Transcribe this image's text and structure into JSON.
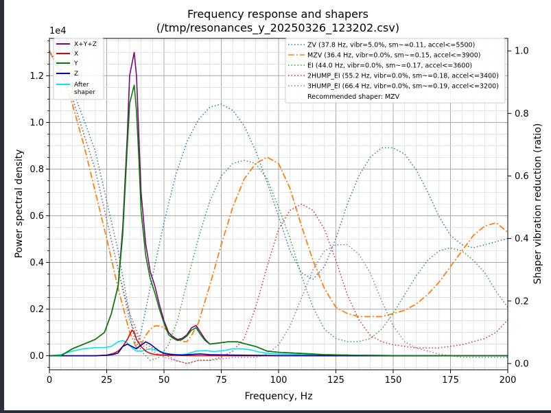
{
  "chart_data": {
    "type": "line",
    "title": "Frequency response and shapers",
    "subtitle": "(/tmp/resonances_y_20250326_123202.csv)",
    "xlabel": "Frequency, Hz",
    "ylabel": "Power spectral density",
    "y2label": "Shaper vibration reduction (ratio)",
    "y_offset_label": "1e4",
    "xlim": [
      0,
      200
    ],
    "ylim": [
      -0.06,
      1.36
    ],
    "y2lim": [
      -0.02,
      1.04
    ],
    "x_ticks": [
      0,
      25,
      50,
      75,
      100,
      125,
      150,
      175,
      200
    ],
    "y_ticks": [
      0.0,
      0.2,
      0.4,
      0.6,
      0.8,
      1.0,
      1.2
    ],
    "y_tick_labels": [
      "0.0",
      "0.2",
      "0.4",
      "0.6",
      "0.8",
      "1.0",
      "1.2"
    ],
    "y2_ticks": [
      0.0,
      0.2,
      0.4,
      0.6,
      0.8,
      1.0
    ],
    "y2_tick_labels": [
      "0.0",
      "0.2",
      "0.4",
      "0.6",
      "0.8",
      "1.0"
    ],
    "grid": true,
    "legend_left_position": "top-left",
    "legend_right_position": "top-right",
    "psd_series": [
      {
        "name": "X+Y+Z",
        "color": "#800080",
        "x": [
          0,
          5,
          10,
          15,
          20,
          24,
          27,
          30,
          32,
          34,
          35,
          36,
          37,
          38,
          39,
          40,
          42,
          44,
          46,
          48,
          50,
          52,
          54,
          56,
          58,
          60,
          62,
          64,
          66,
          68,
          70,
          74,
          78,
          82,
          86,
          90,
          95,
          100,
          110,
          120,
          130,
          140,
          150,
          160,
          170,
          180,
          190,
          200
        ],
        "y": [
          0,
          0,
          0.03,
          0.05,
          0.07,
          0.1,
          0.18,
          0.3,
          0.55,
          0.95,
          1.2,
          1.25,
          1.3,
          1.2,
          0.95,
          0.7,
          0.48,
          0.36,
          0.3,
          0.22,
          0.15,
          0.1,
          0.08,
          0.07,
          0.075,
          0.09,
          0.12,
          0.13,
          0.1,
          0.07,
          0.05,
          0.055,
          0.06,
          0.06,
          0.05,
          0.04,
          0.02,
          0.015,
          0.01,
          0.005,
          0.003,
          0.002,
          0.001,
          0.001,
          0.0,
          0.0,
          0.0,
          0.0
        ]
      },
      {
        "name": "X",
        "color": "#e00000",
        "x": [
          0,
          10,
          20,
          25,
          28,
          30,
          32,
          34,
          35,
          36,
          37,
          38,
          40,
          42,
          44,
          46,
          48,
          50,
          55,
          60,
          80,
          100,
          150,
          200
        ],
        "y": [
          0,
          0,
          0,
          0.003,
          0.01,
          0.02,
          0.04,
          0.07,
          0.09,
          0.11,
          0.1,
          0.07,
          0.04,
          0.02,
          0.01,
          0.006,
          0.004,
          0.003,
          0.002,
          0.001,
          0.0,
          0.0,
          0.0,
          0.0
        ]
      },
      {
        "name": "Y",
        "color": "#008000",
        "x": [
          0,
          5,
          10,
          15,
          20,
          24,
          27,
          30,
          32,
          34,
          35,
          36,
          37,
          38,
          39,
          40,
          42,
          44,
          46,
          48,
          50,
          52,
          54,
          56,
          58,
          60,
          62,
          64,
          66,
          68,
          70,
          74,
          78,
          82,
          86,
          90,
          95,
          100,
          110,
          120,
          130,
          140,
          150,
          160,
          170,
          180,
          190,
          200
        ],
        "y": [
          0,
          0,
          0.03,
          0.05,
          0.07,
          0.1,
          0.18,
          0.3,
          0.52,
          0.9,
          1.08,
          1.12,
          1.16,
          1.05,
          0.85,
          0.62,
          0.43,
          0.33,
          0.27,
          0.2,
          0.14,
          0.09,
          0.075,
          0.065,
          0.07,
          0.085,
          0.11,
          0.12,
          0.09,
          0.065,
          0.05,
          0.055,
          0.06,
          0.06,
          0.05,
          0.04,
          0.02,
          0.015,
          0.01,
          0.005,
          0.003,
          0.002,
          0.001,
          0.001,
          0.0,
          0.0,
          0.0,
          0.0
        ]
      },
      {
        "name": "Z",
        "color": "#0000b0",
        "x": [
          0,
          10,
          20,
          25,
          28,
          30,
          32,
          34,
          36,
          38,
          40,
          42,
          44,
          46,
          48,
          50,
          54,
          58,
          62,
          66,
          70,
          80,
          100,
          130,
          160,
          200
        ],
        "y": [
          0,
          0,
          0,
          0.002,
          0.006,
          0.012,
          0.04,
          0.05,
          0.04,
          0.03,
          0.045,
          0.06,
          0.05,
          0.035,
          0.02,
          0.01,
          0.005,
          0.003,
          0.006,
          0.008,
          0.005,
          0.003,
          0.001,
          0.0,
          0.0,
          0.0
        ]
      },
      {
        "name": "After\nshaper",
        "color": "#00e5ee",
        "x": [
          0,
          5,
          10,
          15,
          20,
          24,
          27,
          30,
          32,
          34,
          36,
          38,
          40,
          44,
          48,
          52,
          56,
          60,
          64,
          68,
          72,
          76,
          80,
          84,
          88,
          92,
          96,
          100,
          110,
          120,
          130,
          140,
          150,
          160,
          170,
          180,
          190,
          200
        ],
        "y": [
          0,
          0.005,
          0.02,
          0.03,
          0.035,
          0.035,
          0.04,
          0.06,
          0.065,
          0.055,
          0.035,
          0.02,
          0.02,
          0.03,
          0.02,
          0.008,
          0.004,
          0.008,
          0.02,
          0.022,
          0.018,
          0.022,
          0.03,
          0.03,
          0.025,
          0.015,
          0.01,
          0.008,
          0.005,
          0.003,
          0.002,
          0.001,
          0.0,
          0.0,
          0.0,
          0.0,
          0.0,
          0.0
        ]
      }
    ],
    "shaper_series": [
      {
        "name": "ZV (37.8 Hz, vibr=5.0%, sm~=0.11, accel<=5500)",
        "color": "#1f77b4",
        "style": "dotted",
        "width": 1.5,
        "x": [
          0,
          10,
          20,
          30,
          36,
          38,
          40,
          45,
          50,
          55,
          60,
          65,
          70,
          75,
          80,
          85,
          90,
          95,
          100,
          105,
          110,
          115,
          120,
          125,
          130,
          135,
          140,
          145,
          150,
          155,
          160,
          165,
          170,
          175,
          180,
          185,
          190,
          195,
          200
        ],
        "y": [
          1.0,
          0.88,
          0.68,
          0.36,
          0.12,
          0.05,
          0.1,
          0.28,
          0.45,
          0.6,
          0.71,
          0.78,
          0.82,
          0.83,
          0.81,
          0.76,
          0.68,
          0.58,
          0.47,
          0.36,
          0.29,
          0.27,
          0.31,
          0.4,
          0.51,
          0.6,
          0.66,
          0.69,
          0.69,
          0.67,
          0.62,
          0.55,
          0.47,
          0.41,
          0.38,
          0.37,
          0.38,
          0.39,
          0.4
        ]
      },
      {
        "name": "MZV (36.4 Hz, vibr=0.0%, sm~=0.15, accel<=3900)",
        "color": "#ff7f0e",
        "style": "dashdot",
        "width": 1.8,
        "x": [
          0,
          5,
          10,
          15,
          20,
          25,
          30,
          35,
          38,
          40,
          42,
          44,
          46,
          48,
          50,
          52,
          55,
          58,
          60,
          62,
          65,
          70,
          75,
          80,
          85,
          90,
          95,
          100,
          105,
          110,
          115,
          120,
          125,
          130,
          135,
          140,
          145,
          150,
          155,
          160,
          165,
          170,
          175,
          180,
          185,
          190,
          195,
          200
        ],
        "y": [
          1.0,
          0.93,
          0.83,
          0.7,
          0.55,
          0.4,
          0.24,
          0.1,
          0.05,
          0.06,
          0.09,
          0.11,
          0.12,
          0.12,
          0.115,
          0.1,
          0.08,
          0.07,
          0.07,
          0.09,
          0.13,
          0.25,
          0.38,
          0.5,
          0.59,
          0.64,
          0.66,
          0.64,
          0.56,
          0.44,
          0.33,
          0.24,
          0.18,
          0.16,
          0.15,
          0.15,
          0.15,
          0.16,
          0.17,
          0.19,
          0.22,
          0.26,
          0.31,
          0.36,
          0.41,
          0.44,
          0.45,
          0.42
        ]
      },
      {
        "name": "EI (44.0 Hz, vibr=0.0%, sm~=0.17, accel<=3600)",
        "color": "#2ca02c",
        "style": "dotted",
        "width": 1.5,
        "x": [
          0,
          10,
          20,
          30,
          35,
          40,
          44,
          48,
          52,
          56,
          60,
          65,
          70,
          75,
          80,
          85,
          90,
          95,
          100,
          105,
          110,
          115,
          120,
          125,
          130,
          135,
          140,
          145,
          150,
          155,
          160,
          165,
          170,
          175,
          180,
          185,
          190,
          195,
          200
        ],
        "y": [
          1.0,
          0.85,
          0.62,
          0.3,
          0.14,
          0.04,
          0.01,
          0.02,
          0.06,
          0.14,
          0.26,
          0.4,
          0.52,
          0.6,
          0.64,
          0.65,
          0.64,
          0.59,
          0.5,
          0.4,
          0.28,
          0.18,
          0.11,
          0.08,
          0.07,
          0.07,
          0.08,
          0.11,
          0.16,
          0.22,
          0.28,
          0.33,
          0.36,
          0.37,
          0.36,
          0.33,
          0.29,
          0.23,
          0.18
        ]
      },
      {
        "name": "2HUMP_EI (55.2 Hz, vibr=0.0%, sm~=0.18, accel<=3400)",
        "color": "#d62728",
        "style": "dotted",
        "width": 1.5,
        "x": [
          0,
          10,
          20,
          30,
          35,
          40,
          45,
          50,
          55,
          60,
          65,
          70,
          75,
          80,
          85,
          90,
          95,
          100,
          105,
          110,
          115,
          120,
          125,
          130,
          135,
          140,
          145,
          150,
          155,
          160,
          165,
          170,
          175,
          180,
          185,
          190,
          195,
          200
        ],
        "y": [
          1.0,
          0.85,
          0.62,
          0.3,
          0.16,
          0.07,
          0.05,
          0.03,
          0.01,
          0.0,
          0.01,
          0.01,
          0.02,
          0.04,
          0.08,
          0.18,
          0.31,
          0.43,
          0.49,
          0.51,
          0.49,
          0.43,
          0.33,
          0.22,
          0.14,
          0.09,
          0.07,
          0.06,
          0.055,
          0.05,
          0.05,
          0.05,
          0.055,
          0.06,
          0.07,
          0.08,
          0.1,
          0.14
        ]
      },
      {
        "name": "3HUMP_EI (66.4 Hz, vibr=0.0%, sm~=0.19, accel<=3200)",
        "color": "#7f7f9f",
        "style": "dotted",
        "width": 1.5,
        "x": [
          0,
          10,
          20,
          30,
          35,
          40,
          45,
          50,
          55,
          60,
          65,
          70,
          75,
          80,
          85,
          90,
          95,
          100,
          105,
          110,
          115,
          120,
          125,
          130,
          135,
          140,
          145,
          150,
          155,
          160,
          165,
          170,
          175,
          180,
          185,
          190,
          195,
          200
        ],
        "y": [
          1.0,
          0.85,
          0.62,
          0.3,
          0.14,
          0.06,
          0.04,
          0.02,
          0.01,
          0.0,
          0.01,
          0.01,
          0.015,
          0.02,
          0.02,
          0.02,
          0.03,
          0.06,
          0.12,
          0.21,
          0.3,
          0.36,
          0.38,
          0.38,
          0.35,
          0.29,
          0.2,
          0.12,
          0.07,
          0.05,
          0.04,
          0.03,
          0.025,
          0.02,
          0.02,
          0.02,
          0.02,
          0.02
        ]
      }
    ],
    "recommended_text": "Recommended shaper: MZV"
  }
}
